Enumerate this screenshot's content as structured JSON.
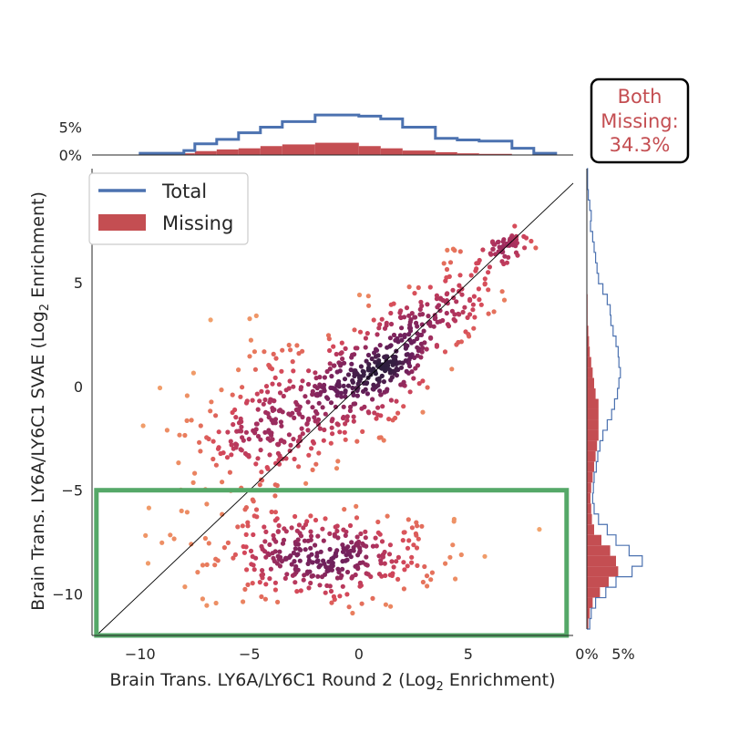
{
  "chart_data": {
    "type": "scatter",
    "xlabel": "Brain Trans. LY6A/LY6C1 Round 2 (Log",
    "xlabel_sub": "2",
    "xlabel_tail": " Enrichment)",
    "ylabel": "Brain Trans. LY6A/LY6C1 SVAE (Log",
    "ylabel_sub": "2",
    "ylabel_tail": " Enrichment)",
    "xlim": [
      -12.2,
      9.8
    ],
    "ylim": [
      -12.0,
      10.5
    ],
    "x_ticks": [
      -10,
      -5,
      0,
      5
    ],
    "y_ticks": [
      5,
      0,
      -5,
      -10
    ],
    "x_tick_labels": [
      "−10",
      "−5",
      "0",
      "5"
    ],
    "y_tick_labels": [
      "5",
      "0",
      "−5",
      "−10"
    ],
    "grid": false,
    "diagonal_line": true,
    "colormap": [
      "#2d1e3e",
      "#6b1f5c",
      "#a8305e",
      "#d4485a",
      "#e8795c",
      "#f2a46d"
    ],
    "clusters": [
      {
        "cx": 0.5,
        "cy": 0.5,
        "sx": 1.6,
        "sy": 1.5,
        "corr": 0.55,
        "n": 260
      },
      {
        "cx": 3.5,
        "cy": 3.5,
        "sx": 1.8,
        "sy": 1.6,
        "corr": 0.75,
        "n": 170
      },
      {
        "cx": -3.5,
        "cy": -1.5,
        "sx": 1.8,
        "sy": 1.6,
        "corr": 0.3,
        "n": 220
      },
      {
        "cx": -1.5,
        "cy": -8.2,
        "sx": 2.6,
        "sy": 1.1,
        "corr": 0.1,
        "n": 340
      },
      {
        "cx": 6.8,
        "cy": 6.8,
        "sx": 0.6,
        "sy": 0.5,
        "corr": 0.6,
        "n": 45
      },
      {
        "cx": -6.5,
        "cy": -3.0,
        "sx": 2.0,
        "sy": 2.8,
        "corr": 0.2,
        "n": 40
      }
    ],
    "highlight_box": {
      "x0": -12.0,
      "x1": 9.5,
      "y0": -12.0,
      "y1": -5.0,
      "color": "#55a868"
    },
    "top_histogram": {
      "bin_edges": [
        -10,
        -8,
        -7.5,
        -6.5,
        -5.5,
        -4.5,
        -3.5,
        -2,
        0,
        1,
        2,
        3.5,
        4.5,
        5.5,
        7,
        8,
        9
      ],
      "total": [
        0.3,
        0.8,
        2.0,
        2.8,
        4.0,
        5.0,
        6.0,
        7.2,
        7.0,
        6.5,
        5.0,
        3.0,
        2.7,
        2.5,
        1.2,
        0.3
      ],
      "missing": [
        0.1,
        0.3,
        0.7,
        1.0,
        1.2,
        1.6,
        1.9,
        2.2,
        1.6,
        1.2,
        0.8,
        0.5,
        0.3,
        0.2,
        0.0,
        0.0
      ],
      "ticks": [
        0,
        5
      ],
      "tick_labels": [
        "0%",
        "5%"
      ]
    },
    "right_histogram": {
      "bin_edges": [
        -12,
        -11.5,
        -11,
        -10.5,
        -10,
        -9.5,
        -9,
        -8.5,
        -8,
        -7.5,
        -7,
        -6.5,
        -6,
        -5.5,
        -5,
        -4.5,
        -4,
        -3.5,
        -3,
        -2.5,
        -2,
        -1.5,
        -1,
        -0.5,
        0,
        0.5,
        1,
        1.5,
        2,
        2.5,
        3,
        3.5,
        4,
        4.5,
        5,
        5.5,
        6,
        6.5,
        7,
        7.5,
        8,
        8.5,
        9,
        9.5,
        10
      ],
      "total": [
        0.4,
        0.6,
        1.2,
        2.6,
        4.0,
        6.2,
        7.6,
        5.8,
        4.0,
        2.8,
        1.6,
        1.0,
        0.8,
        0.9,
        1.0,
        1.3,
        1.5,
        1.8,
        2.2,
        2.8,
        3.4,
        3.8,
        4.2,
        4.4,
        4.6,
        4.4,
        4.3,
        4.0,
        3.6,
        3.3,
        3.2,
        2.8,
        2.2,
        1.6,
        1.4,
        1.2,
        1.0,
        0.8,
        0.5,
        0.6,
        0.4,
        0.2,
        0.1,
        0.1
      ],
      "missing": [
        0.2,
        0.4,
        0.8,
        1.8,
        3.0,
        4.3,
        4.0,
        3.2,
        2.0,
        1.0,
        0.7,
        0.6,
        0.5,
        0.6,
        0.8,
        1.0,
        1.2,
        1.4,
        1.6,
        1.6,
        1.6,
        1.6,
        1.2,
        1.0,
        0.8,
        0.6,
        0.4,
        0.3,
        0.2,
        0.1,
        0.1,
        0.1,
        0.0,
        0.0,
        0.0,
        0.0,
        0.0,
        0.0,
        0.0,
        0.0,
        0.0,
        0.0,
        0.0,
        0.0
      ],
      "ticks": [
        0,
        5
      ],
      "tick_labels": [
        "0%",
        "5%"
      ]
    },
    "legend": {
      "placement": "top-left",
      "entries": [
        {
          "label": "Total",
          "kind": "line",
          "color": "#4c72b0"
        },
        {
          "label": "Missing",
          "kind": "patch",
          "color": "#c44e52"
        }
      ]
    },
    "annotation": {
      "lines": [
        "Both",
        "Missing:",
        "34.3%"
      ],
      "color": "#c44e52",
      "placement": "top-right"
    }
  }
}
